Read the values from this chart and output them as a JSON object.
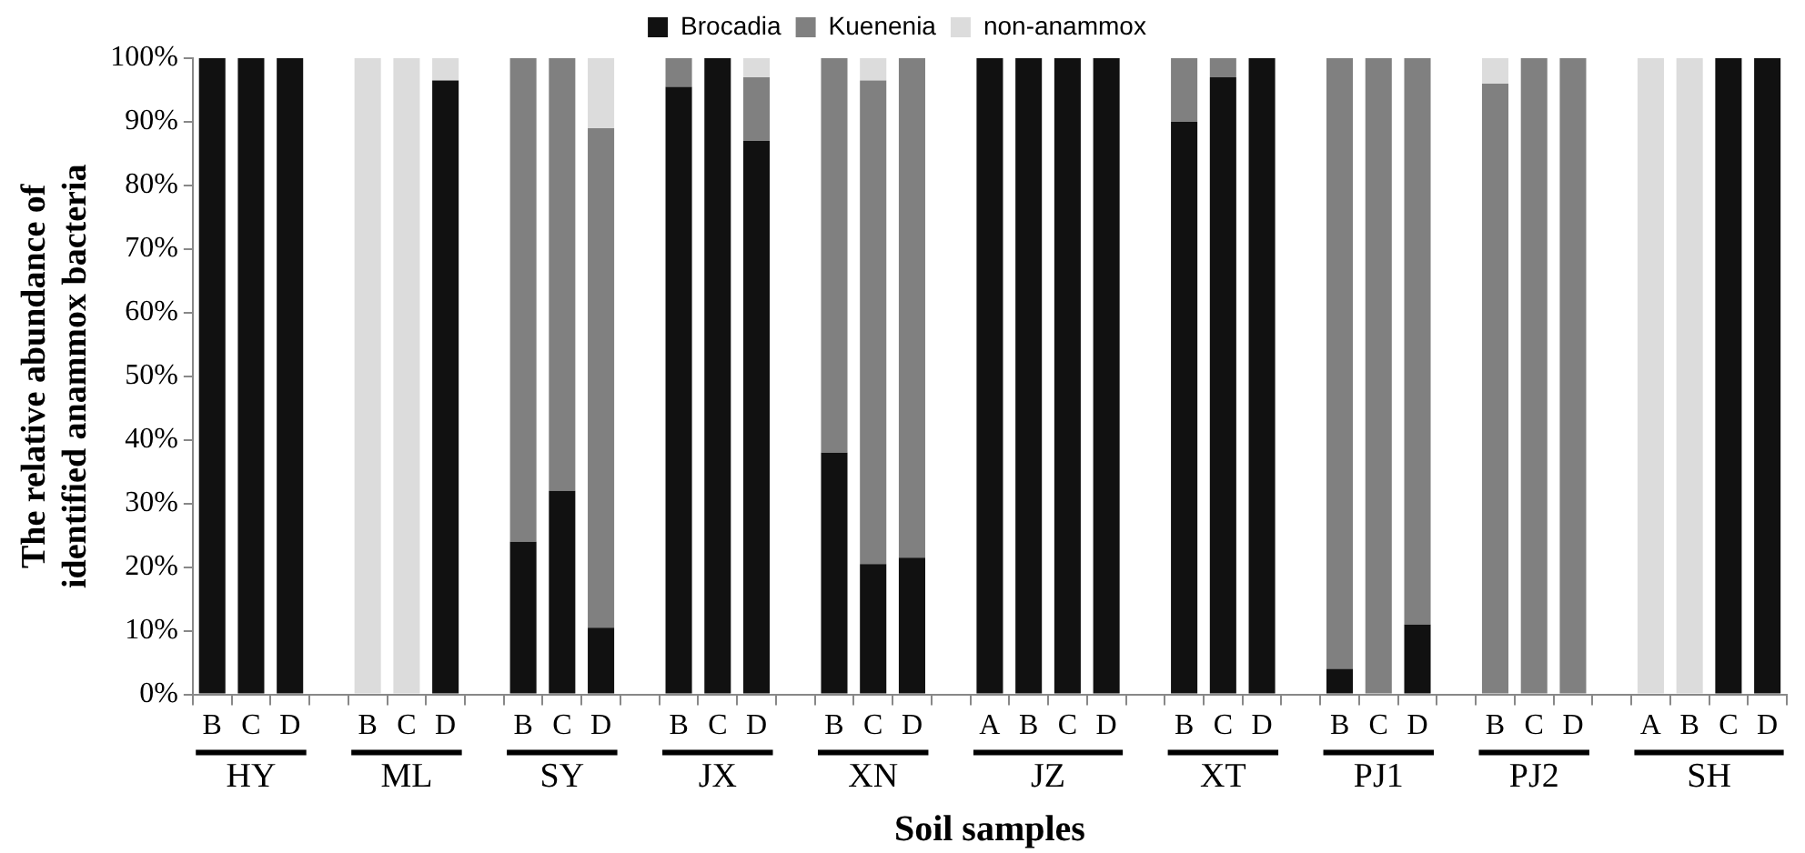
{
  "chart_data": {
    "type": "bar",
    "stacked": true,
    "xlabel": "Soil samples",
    "ylabel": "The relative abundance of identified anammox bacteria",
    "categories": [
      "B",
      "C",
      "D",
      null,
      "B",
      "C",
      "D",
      null,
      "B",
      "C",
      "D",
      null,
      "B",
      "C",
      "D",
      null,
      "B",
      "C",
      "D",
      null,
      "A",
      "B",
      "C",
      "D",
      null,
      "B",
      "C",
      "D",
      null,
      "B",
      "C",
      "D",
      null,
      "B",
      "C",
      "D",
      null,
      "A",
      "B",
      "C",
      "D"
    ],
    "series": [
      {
        "name": "Brocadia",
        "color": "#111111",
        "values": [
          100,
          100,
          100,
          null,
          0,
          0,
          96.5,
          null,
          24,
          32,
          10.5,
          null,
          95.5,
          100,
          87,
          null,
          38,
          20.5,
          21.5,
          null,
          100,
          100,
          100,
          100,
          null,
          90,
          97,
          100,
          null,
          4,
          0,
          11,
          null,
          0,
          0,
          0,
          null,
          0,
          0,
          100,
          100
        ]
      },
      {
        "name": "Kuenenia",
        "color": "#808080",
        "values": [
          0,
          0,
          0,
          null,
          0,
          0,
          0,
          null,
          76,
          68,
          78.5,
          null,
          4.5,
          0,
          10,
          null,
          62,
          76,
          78.5,
          null,
          0,
          0,
          0,
          0,
          null,
          10,
          3,
          0,
          null,
          96,
          100,
          89,
          null,
          96,
          100,
          100,
          null,
          0,
          0,
          0,
          0
        ]
      },
      {
        "name": "non-anammox",
        "color": "#dcdcdc",
        "values": [
          0,
          0,
          0,
          null,
          100,
          100,
          3.5,
          null,
          0,
          0,
          11,
          null,
          0,
          0,
          3,
          null,
          0,
          3.5,
          0,
          null,
          0,
          0,
          0,
          0,
          null,
          0,
          0,
          0,
          null,
          0,
          0,
          0,
          null,
          4,
          0,
          0,
          null,
          100,
          100,
          0,
          0
        ]
      }
    ],
    "ylim": [
      0,
      100
    ],
    "yticks": [
      {
        "value": 0,
        "label": "0%"
      },
      {
        "value": 10,
        "label": "10%"
      },
      {
        "value": 20,
        "label": "20%"
      },
      {
        "value": 30,
        "label": "30%"
      },
      {
        "value": 40,
        "label": "40%"
      },
      {
        "value": 50,
        "label": "50%"
      },
      {
        "value": 60,
        "label": "60%"
      },
      {
        "value": 70,
        "label": "70%"
      },
      {
        "value": 80,
        "label": "80%"
      },
      {
        "value": 90,
        "label": "90%"
      },
      {
        "value": 100,
        "label": "100%"
      }
    ],
    "annotations": [
      "HY",
      "ML",
      "SY",
      "JX",
      "XN",
      "JZ",
      "XT",
      "PJ1",
      "PJ2",
      "SH"
    ],
    "grid": false,
    "legend": "top"
  }
}
